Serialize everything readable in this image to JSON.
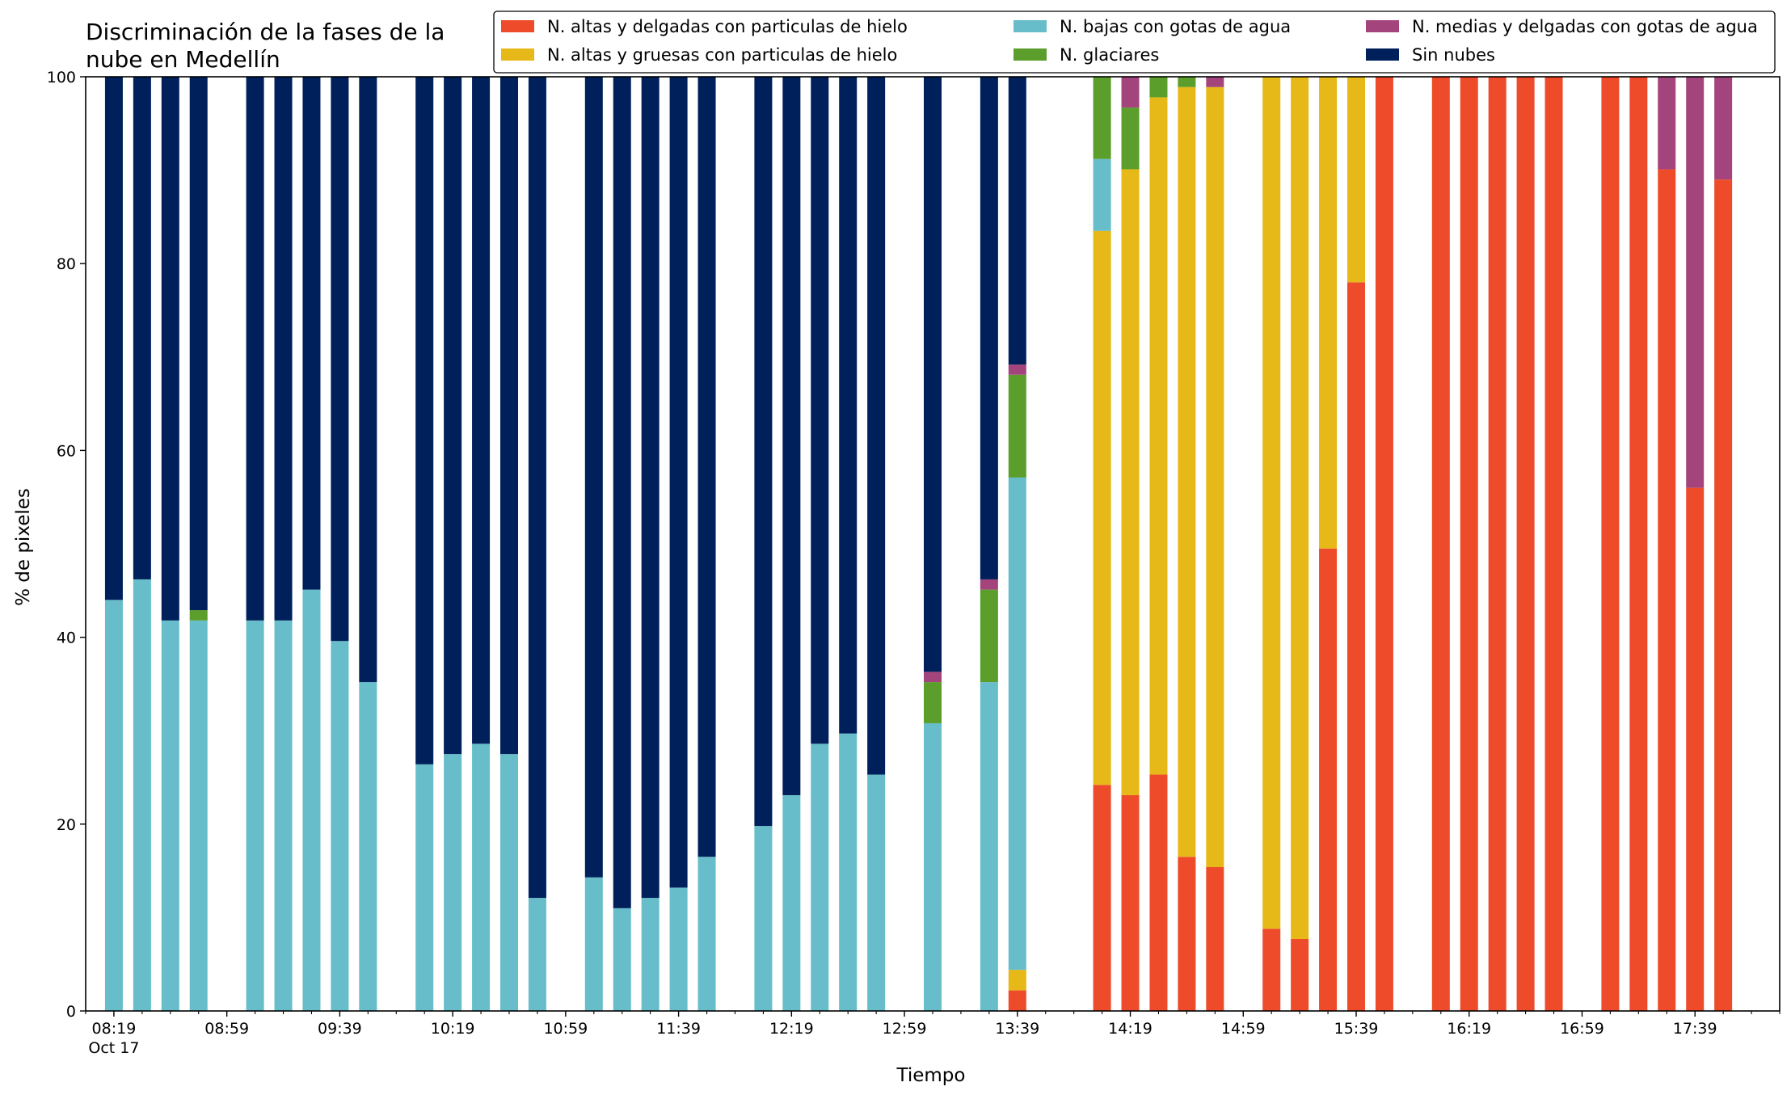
{
  "chart_data": {
    "type": "bar",
    "stacked": true,
    "title_lines": [
      "Discriminación de la fases de la",
      "nube en Medellín"
    ],
    "xlabel": "Tiempo",
    "ylabel": "% de pixeles",
    "ylim": [
      0,
      100
    ],
    "yticks": [
      0,
      20,
      40,
      60,
      80,
      100
    ],
    "xlim_minutes": [
      -10,
      590
    ],
    "xticks": [
      {
        "minute": 0,
        "label": "08:19",
        "sublabel": "Oct 17"
      },
      {
        "minute": 40,
        "label": "08:59"
      },
      {
        "minute": 80,
        "label": "09:39"
      },
      {
        "minute": 120,
        "label": "10:19"
      },
      {
        "minute": 160,
        "label": "10:59"
      },
      {
        "minute": 200,
        "label": "11:39"
      },
      {
        "minute": 240,
        "label": "12:19"
      },
      {
        "minute": 280,
        "label": "12:59"
      },
      {
        "minute": 320,
        "label": "13:39"
      },
      {
        "minute": 360,
        "label": "14:19"
      },
      {
        "minute": 400,
        "label": "14:59"
      },
      {
        "minute": 440,
        "label": "15:39"
      },
      {
        "minute": 480,
        "label": "16:19"
      },
      {
        "minute": 520,
        "label": "16:59"
      },
      {
        "minute": 560,
        "label": "17:39"
      }
    ],
    "minor_tick_step_minutes": 10,
    "grid": false,
    "legend_position": "top-right",
    "legend_columns": 3,
    "series_order": [
      "altas_delgadas",
      "altas_gruesas",
      "bajas",
      "glaciares",
      "medias",
      "sin_nubes"
    ],
    "legend_order": [
      "altas_delgadas",
      "altas_gruesas",
      "bajas",
      "glaciares",
      "medias",
      "sin_nubes"
    ],
    "series": {
      "altas_delgadas": {
        "name": "N. altas y delgadas con particulas de hielo",
        "color": "#EE4B2B"
      },
      "altas_gruesas": {
        "name": "N. altas y gruesas con particulas de hielo",
        "color": "#E6B818"
      },
      "bajas": {
        "name": "N. bajas con gotas de agua",
        "color": "#67BECA"
      },
      "glaciares": {
        "name": "N. glaciares",
        "color": "#5C9E2B"
      },
      "medias": {
        "name": "N. medias y delgadas con gotas de agua",
        "color": "#A3457C"
      },
      "sin_nubes": {
        "name": "Sin nubes",
        "color": "#00205B"
      }
    },
    "bar_time_labels": [
      "08:19",
      "08:29",
      "08:39",
      "08:49",
      "09:09",
      "09:19",
      "09:29",
      "09:39",
      "09:49",
      "10:09",
      "10:19",
      "10:29",
      "10:39",
      "10:49",
      "11:09",
      "11:19",
      "11:29",
      "11:39",
      "11:49",
      "12:09",
      "12:19",
      "12:29",
      "12:39",
      "12:49",
      "13:09",
      "13:29",
      "13:39",
      "14:09",
      "14:19",
      "14:29",
      "14:39",
      "14:49",
      "15:09",
      "15:19",
      "15:29",
      "15:39",
      "15:49",
      "16:09",
      "16:19",
      "16:29",
      "16:39",
      "16:49",
      "17:09",
      "17:19",
      "17:29",
      "17:39",
      "17:49"
    ],
    "bars": [
      {
        "minute": 0,
        "altas_delgadas": 0,
        "altas_gruesas": 0,
        "bajas": 44.0,
        "glaciares": 0,
        "medias": 0,
        "sin_nubes": 56.0
      },
      {
        "minute": 10,
        "altas_delgadas": 0,
        "altas_gruesas": 0,
        "bajas": 46.2,
        "glaciares": 0,
        "medias": 0,
        "sin_nubes": 53.8
      },
      {
        "minute": 20,
        "altas_delgadas": 0,
        "altas_gruesas": 0,
        "bajas": 41.8,
        "glaciares": 0,
        "medias": 0,
        "sin_nubes": 58.2
      },
      {
        "minute": 30,
        "altas_delgadas": 0,
        "altas_gruesas": 0,
        "bajas": 41.8,
        "glaciares": 1.1,
        "medias": 0,
        "sin_nubes": 57.1
      },
      {
        "minute": 50,
        "altas_delgadas": 0,
        "altas_gruesas": 0,
        "bajas": 41.8,
        "glaciares": 0,
        "medias": 0,
        "sin_nubes": 58.2
      },
      {
        "minute": 60,
        "altas_delgadas": 0,
        "altas_gruesas": 0,
        "bajas": 41.8,
        "glaciares": 0,
        "medias": 0,
        "sin_nubes": 58.2
      },
      {
        "minute": 70,
        "altas_delgadas": 0,
        "altas_gruesas": 0,
        "bajas": 45.1,
        "glaciares": 0,
        "medias": 0,
        "sin_nubes": 54.9
      },
      {
        "minute": 80,
        "altas_delgadas": 0,
        "altas_gruesas": 0,
        "bajas": 39.6,
        "glaciares": 0,
        "medias": 0,
        "sin_nubes": 60.4
      },
      {
        "minute": 90,
        "altas_delgadas": 0,
        "altas_gruesas": 0,
        "bajas": 35.2,
        "glaciares": 0,
        "medias": 0,
        "sin_nubes": 64.8
      },
      {
        "minute": 110,
        "altas_delgadas": 0,
        "altas_gruesas": 0,
        "bajas": 26.4,
        "glaciares": 0,
        "medias": 0,
        "sin_nubes": 73.6
      },
      {
        "minute": 120,
        "altas_delgadas": 0,
        "altas_gruesas": 0,
        "bajas": 27.5,
        "glaciares": 0,
        "medias": 0,
        "sin_nubes": 72.5
      },
      {
        "minute": 130,
        "altas_delgadas": 0,
        "altas_gruesas": 0,
        "bajas": 28.6,
        "glaciares": 0,
        "medias": 0,
        "sin_nubes": 71.4
      },
      {
        "minute": 140,
        "altas_delgadas": 0,
        "altas_gruesas": 0,
        "bajas": 27.5,
        "glaciares": 0,
        "medias": 0,
        "sin_nubes": 72.5
      },
      {
        "minute": 150,
        "altas_delgadas": 0,
        "altas_gruesas": 0,
        "bajas": 12.1,
        "glaciares": 0,
        "medias": 0,
        "sin_nubes": 87.9
      },
      {
        "minute": 170,
        "altas_delgadas": 0,
        "altas_gruesas": 0,
        "bajas": 14.3,
        "glaciares": 0,
        "medias": 0,
        "sin_nubes": 85.7
      },
      {
        "minute": 180,
        "altas_delgadas": 0,
        "altas_gruesas": 0,
        "bajas": 11.0,
        "glaciares": 0,
        "medias": 0,
        "sin_nubes": 89.0
      },
      {
        "minute": 190,
        "altas_delgadas": 0,
        "altas_gruesas": 0,
        "bajas": 12.1,
        "glaciares": 0,
        "medias": 0,
        "sin_nubes": 87.9
      },
      {
        "minute": 200,
        "altas_delgadas": 0,
        "altas_gruesas": 0,
        "bajas": 13.2,
        "glaciares": 0,
        "medias": 0,
        "sin_nubes": 86.8
      },
      {
        "minute": 210,
        "altas_delgadas": 0,
        "altas_gruesas": 0,
        "bajas": 16.5,
        "glaciares": 0,
        "medias": 0,
        "sin_nubes": 83.5
      },
      {
        "minute": 230,
        "altas_delgadas": 0,
        "altas_gruesas": 0,
        "bajas": 19.8,
        "glaciares": 0,
        "medias": 0,
        "sin_nubes": 80.2
      },
      {
        "minute": 240,
        "altas_delgadas": 0,
        "altas_gruesas": 0,
        "bajas": 23.1,
        "glaciares": 0,
        "medias": 0,
        "sin_nubes": 76.9
      },
      {
        "minute": 250,
        "altas_delgadas": 0,
        "altas_gruesas": 0,
        "bajas": 28.6,
        "glaciares": 0,
        "medias": 0,
        "sin_nubes": 71.4
      },
      {
        "minute": 260,
        "altas_delgadas": 0,
        "altas_gruesas": 0,
        "bajas": 29.7,
        "glaciares": 0,
        "medias": 0,
        "sin_nubes": 70.3
      },
      {
        "minute": 270,
        "altas_delgadas": 0,
        "altas_gruesas": 0,
        "bajas": 25.3,
        "glaciares": 0,
        "medias": 0,
        "sin_nubes": 74.7
      },
      {
        "minute": 290,
        "altas_delgadas": 0,
        "altas_gruesas": 0,
        "bajas": 30.8,
        "glaciares": 4.4,
        "medias": 1.1,
        "sin_nubes": 63.7
      },
      {
        "minute": 310,
        "altas_delgadas": 0,
        "altas_gruesas": 0,
        "bajas": 35.2,
        "glaciares": 9.9,
        "medias": 1.1,
        "sin_nubes": 53.8
      },
      {
        "minute": 320,
        "altas_delgadas": 2.2,
        "altas_gruesas": 2.2,
        "bajas": 52.7,
        "glaciares": 11.0,
        "medias": 1.1,
        "sin_nubes": 30.8
      },
      {
        "minute": 350,
        "altas_delgadas": 24.2,
        "altas_gruesas": 59.3,
        "bajas": 7.7,
        "glaciares": 8.8,
        "medias": 0,
        "sin_nubes": 0
      },
      {
        "minute": 360,
        "altas_delgadas": 23.1,
        "altas_gruesas": 67.0,
        "bajas": 0,
        "glaciares": 6.6,
        "medias": 3.3,
        "sin_nubes": 0
      },
      {
        "minute": 370,
        "altas_delgadas": 25.3,
        "altas_gruesas": 72.5,
        "bajas": 0,
        "glaciares": 2.2,
        "medias": 0,
        "sin_nubes": 0
      },
      {
        "minute": 380,
        "altas_delgadas": 16.5,
        "altas_gruesas": 82.4,
        "bajas": 0,
        "glaciares": 1.1,
        "medias": 0,
        "sin_nubes": 0
      },
      {
        "minute": 390,
        "altas_delgadas": 15.4,
        "altas_gruesas": 83.5,
        "bajas": 0,
        "glaciares": 0,
        "medias": 1.1,
        "sin_nubes": 0
      },
      {
        "minute": 410,
        "altas_delgadas": 8.8,
        "altas_gruesas": 91.2,
        "bajas": 0,
        "glaciares": 0,
        "medias": 0,
        "sin_nubes": 0
      },
      {
        "minute": 420,
        "altas_delgadas": 7.7,
        "altas_gruesas": 92.3,
        "bajas": 0,
        "glaciares": 0,
        "medias": 0,
        "sin_nubes": 0
      },
      {
        "minute": 430,
        "altas_delgadas": 49.5,
        "altas_gruesas": 50.5,
        "bajas": 0,
        "glaciares": 0,
        "medias": 0,
        "sin_nubes": 0
      },
      {
        "minute": 440,
        "altas_delgadas": 78.0,
        "altas_gruesas": 22.0,
        "bajas": 0,
        "glaciares": 0,
        "medias": 0,
        "sin_nubes": 0
      },
      {
        "minute": 450,
        "altas_delgadas": 100,
        "altas_gruesas": 0,
        "bajas": 0,
        "glaciares": 0,
        "medias": 0,
        "sin_nubes": 0
      },
      {
        "minute": 470,
        "altas_delgadas": 100,
        "altas_gruesas": 0,
        "bajas": 0,
        "glaciares": 0,
        "medias": 0,
        "sin_nubes": 0
      },
      {
        "minute": 480,
        "altas_delgadas": 100,
        "altas_gruesas": 0,
        "bajas": 0,
        "glaciares": 0,
        "medias": 0,
        "sin_nubes": 0
      },
      {
        "minute": 490,
        "altas_delgadas": 100,
        "altas_gruesas": 0,
        "bajas": 0,
        "glaciares": 0,
        "medias": 0,
        "sin_nubes": 0
      },
      {
        "minute": 500,
        "altas_delgadas": 100,
        "altas_gruesas": 0,
        "bajas": 0,
        "glaciares": 0,
        "medias": 0,
        "sin_nubes": 0
      },
      {
        "minute": 510,
        "altas_delgadas": 100,
        "altas_gruesas": 0,
        "bajas": 0,
        "glaciares": 0,
        "medias": 0,
        "sin_nubes": 0
      },
      {
        "minute": 530,
        "altas_delgadas": 100,
        "altas_gruesas": 0,
        "bajas": 0,
        "glaciares": 0,
        "medias": 0,
        "sin_nubes": 0
      },
      {
        "minute": 540,
        "altas_delgadas": 100,
        "altas_gruesas": 0,
        "bajas": 0,
        "glaciares": 0,
        "medias": 0,
        "sin_nubes": 0
      },
      {
        "minute": 550,
        "altas_delgadas": 90.1,
        "altas_gruesas": 0,
        "bajas": 0,
        "glaciares": 0,
        "medias": 9.9,
        "sin_nubes": 0
      },
      {
        "minute": 560,
        "altas_delgadas": 56.0,
        "altas_gruesas": 0,
        "bajas": 0,
        "glaciares": 0,
        "medias": 44.0,
        "sin_nubes": 0
      },
      {
        "minute": 570,
        "altas_delgadas": 89.0,
        "altas_gruesas": 0,
        "bajas": 0,
        "glaciares": 0,
        "medias": 11.0,
        "sin_nubes": 0
      }
    ]
  }
}
